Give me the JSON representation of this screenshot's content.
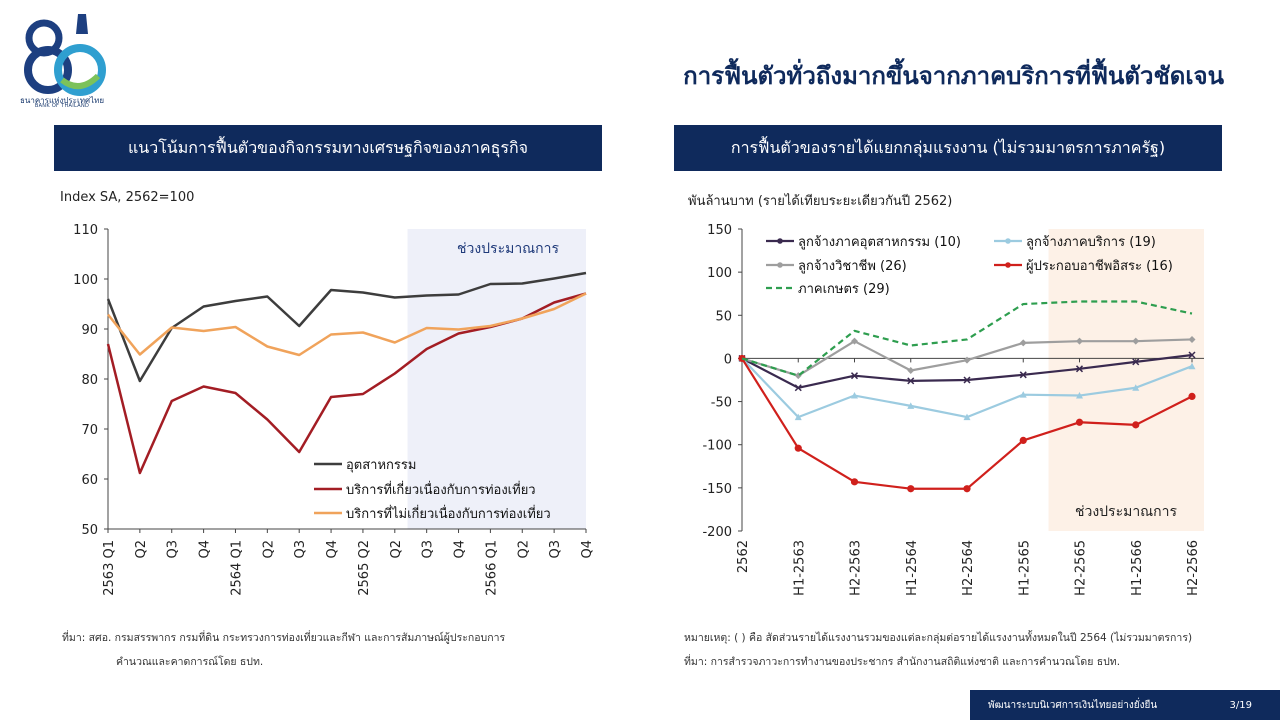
{
  "logo": {
    "number": "80",
    "name_th": "ธนาคารแห่งประเทศไทย",
    "name_en": "BANK OF THAILAND"
  },
  "page_title": "การฟื้นตัวทั่วถึงมากขึ้นจากภาคบริการที่ฟื้นตัวชัดเจน",
  "left_panel": {
    "title": "แนวโน้มการฟื้นตัวของกิจกรรมทางเศรษฐกิจของภาคธุรกิจ",
    "unit_label": "Index SA, 2562=100",
    "source_line1": "ที่มา: สศอ. กรมสรรพากร กรมที่ดิน กระทรวงการท่องเที่ยวและกีฬา และการสัมภาษณ์ผู้ประกอบการ",
    "source_line2": "คำนวณและคาดการณ์โดย ธปท."
  },
  "right_panel": {
    "title": "การฟื้นตัวของรายได้แยกกลุ่มแรงงาน (ไม่รวมมาตรการภาครัฐ)",
    "unit_label": "พันล้านบาท (รายได้เทียบระยะเดียวกันปี  2562)",
    "note_line1": "หมายเหตุ: ( ) คือ สัดส่วนรายได้แรงงานรวมของแต่ละกลุ่มต่อรายได้แรงงานทั้งหมดในปี 2564 (ไม่รวมมาตรการ)",
    "note_line2": "ที่มา: การสำรวจภาวะการทำงานของประชากร สำนักงานสถิติแห่งชาติ และการคำนวณโดย ธปท."
  },
  "footer": {
    "text": "พัฒนาระบบนิเวศการเงินไทยอย่างยั่งยืน",
    "page": "3/19"
  },
  "chart_data": [
    {
      "type": "line",
      "x": [
        "2563 Q1",
        "Q2",
        "Q3",
        "Q4",
        "2564 Q1",
        "Q2",
        "Q3",
        "Q4",
        "2565 Q2",
        "Q2",
        "Q3",
        "Q4",
        "2566 Q1",
        "Q2",
        "Q3",
        "Q4"
      ],
      "ylim": [
        50,
        110
      ],
      "yticks": [
        50,
        60,
        70,
        80,
        90,
        100,
        110
      ],
      "shaded_label": "ช่วงประมาณการ",
      "shaded_from_index": 9.4,
      "grid": false,
      "legend_position": "bottom-right",
      "colors": {
        "shade": "#eef0f9"
      },
      "series": [
        {
          "name": "อุตสาหกรรม",
          "color": "#3d3d3d",
          "values": [
            96,
            79.6,
            90.2,
            94.5,
            95.6,
            96.5,
            90.6,
            97.8,
            97.3,
            96.3,
            96.7,
            96.9,
            99.0,
            99.1,
            100.1,
            101.2
          ]
        },
        {
          "name": "บริการที่เกี่ยวเนื่องกับการท่องเที่ยว",
          "color": "#a31d24",
          "values": [
            87,
            61.2,
            75.6,
            78.5,
            77.2,
            71.9,
            65.4,
            76.4,
            77.0,
            81.1,
            86.0,
            89.1,
            90.4,
            92.1,
            95.3,
            97.1
          ]
        },
        {
          "name": "บริการที่ไม่เกี่ยวเนื่องกับการท่องเที่ยว",
          "color": "#f0a35b",
          "values": [
            92.9,
            84.9,
            90.3,
            89.6,
            90.4,
            86.5,
            84.8,
            88.9,
            89.3,
            87.3,
            90.2,
            89.9,
            90.6,
            92.1,
            94.0,
            97.1
          ]
        }
      ]
    },
    {
      "type": "line",
      "x": [
        "2562",
        "H1-2563",
        "H2-2563",
        "H1-2564",
        "H2-2564",
        "H1-2565",
        "H2-2565",
        "H1-2566",
        "H2-2566"
      ],
      "ylim": [
        -200,
        150
      ],
      "yticks": [
        -200,
        -150,
        -100,
        -50,
        0,
        50,
        100,
        150
      ],
      "shaded_label": "ช่วงประมาณการ",
      "shaded_from_index": 5.45,
      "grid": false,
      "legend_position": "top-left",
      "colors": {
        "shade": "#fdf1e7"
      },
      "series": [
        {
          "name": "ลูกจ้างภาคอุตสาหกรรม  (10)",
          "color": "#3a2a4f",
          "marker": "x",
          "values": [
            0,
            -34,
            -20,
            -26,
            -25,
            -19,
            -12,
            -4,
            4
          ]
        },
        {
          "name": "ลูกจ้างภาคบริการ  (19)",
          "color": "#9ccbe0",
          "marker": "triangle",
          "values": [
            0,
            -68,
            -43,
            -55,
            -68,
            -42,
            -43,
            -34,
            -9
          ]
        },
        {
          "name": "ลูกจ้างวิชาชีพ  (26)",
          "color": "#9e9e9e",
          "marker": "diamond",
          "values": [
            0,
            -20,
            20,
            -14,
            -2,
            18,
            20,
            20,
            22
          ]
        },
        {
          "name": "ผู้ประกอบอาชีพอิสระ  (16)",
          "color": "#d0201c",
          "marker": "circle",
          "values": [
            0,
            -104,
            -143,
            -151,
            -151,
            -95,
            -74,
            -77,
            -44
          ]
        },
        {
          "name": "ภาคเกษตร  (29)",
          "color": "#2e9e4f",
          "dashed": true,
          "values": [
            0,
            -20,
            32,
            15,
            22,
            63,
            66,
            66,
            52
          ]
        }
      ]
    }
  ]
}
